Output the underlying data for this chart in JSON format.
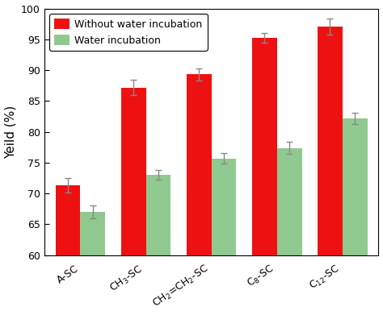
{
  "categories": [
    "A-SC",
    "CH$_3$-SC",
    "CH$_2$=CH$_2$-SC",
    "C$_8$-SC",
    "C$_{12}$-SC"
  ],
  "without_water": [
    71.3,
    87.2,
    89.3,
    95.2,
    97.1
  ],
  "water": [
    67.0,
    73.0,
    75.7,
    77.4,
    82.2
  ],
  "without_water_err": [
    1.2,
    1.2,
    1.0,
    0.8,
    1.3
  ],
  "water_err": [
    1.0,
    0.8,
    0.8,
    1.0,
    0.9
  ],
  "bar_color_red": "#EE1111",
  "bar_color_green": "#90C990",
  "ylabel": "Yeild (%)",
  "ylim": [
    60,
    100
  ],
  "yticks": [
    60,
    65,
    70,
    75,
    80,
    85,
    90,
    95,
    100
  ],
  "legend_labels": [
    "Without water incubation",
    "Water incubation"
  ],
  "bar_width": 0.38,
  "figsize": [
    4.74,
    3.91
  ],
  "dpi": 100,
  "axis_fontsize": 11,
  "tick_fontsize": 9,
  "legend_fontsize": 9,
  "error_color": "#888888"
}
